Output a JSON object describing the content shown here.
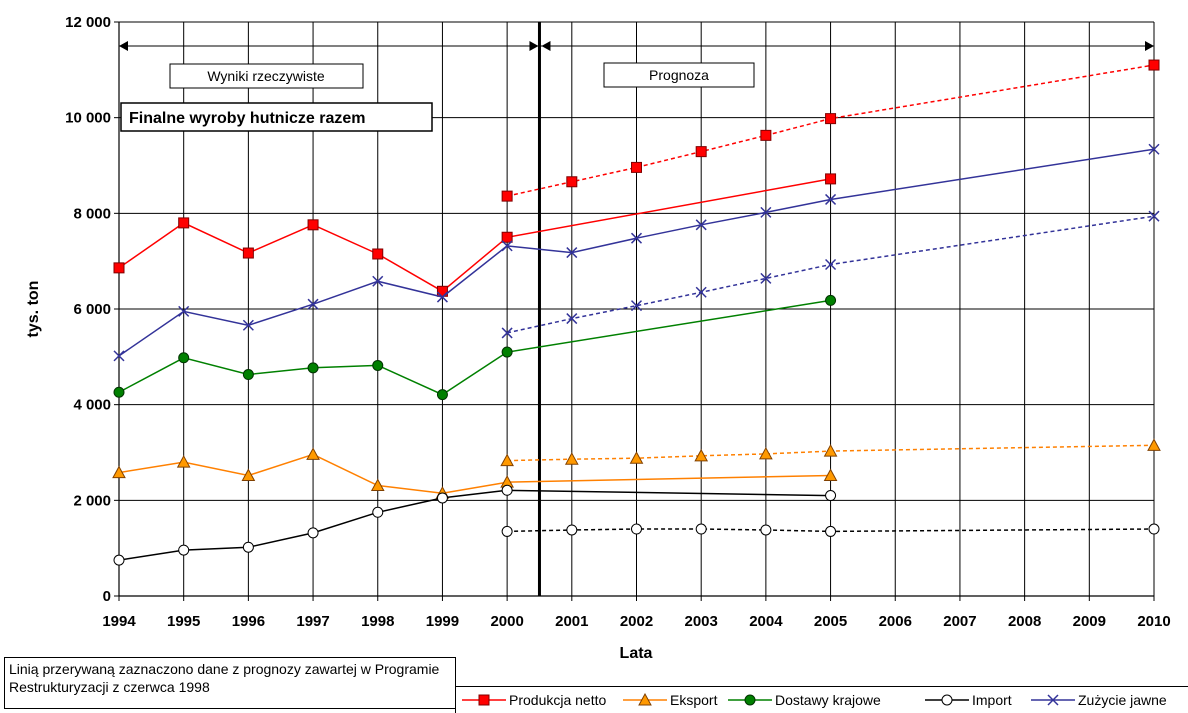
{
  "chart_data": {
    "type": "line",
    "title": "Finalne wyroby hutnicze razem",
    "xlabel": "Lata",
    "ylabel": "tys. ton",
    "x": [
      1994,
      1995,
      1996,
      1997,
      1998,
      1999,
      2000,
      2001,
      2002,
      2003,
      2004,
      2005,
      2006,
      2007,
      2008,
      2009,
      2010
    ],
    "ylim": [
      0,
      12000
    ],
    "yticks": [
      "0",
      "2 000",
      "4 000",
      "6 000",
      "8 000",
      "10 000",
      "12 000"
    ],
    "grid": true,
    "regions": [
      {
        "label": "Wyniki rzeczywiste",
        "from": 1994,
        "to": 2000.5
      },
      {
        "label": "Prognoza",
        "from": 2000.5,
        "to": 2010
      }
    ],
    "divider_x": 2000.5,
    "series": [
      {
        "name": "Produkcja netto",
        "color": "#ff0000",
        "marker": "square",
        "marker_fill": "#ff0000",
        "actual": [
          [
            1994,
            6860
          ],
          [
            1995,
            7800
          ],
          [
            1996,
            7170
          ],
          [
            1997,
            7760
          ],
          [
            1998,
            7150
          ],
          [
            1999,
            6370
          ],
          [
            2000,
            7500
          ]
        ],
        "forecast_solid": [
          [
            2000,
            7500
          ],
          [
            2005,
            8720
          ]
        ],
        "forecast_dashed": [
          [
            2000,
            8360
          ],
          [
            2001,
            8660
          ],
          [
            2002,
            8960
          ],
          [
            2003,
            9290
          ],
          [
            2004,
            9630
          ],
          [
            2005,
            9980
          ],
          [
            2010,
            11100
          ]
        ]
      },
      {
        "name": "Eksport",
        "color": "#ff8000",
        "marker": "triangle",
        "marker_fill": "#ff9900",
        "actual": [
          [
            1994,
            2580
          ],
          [
            1995,
            2800
          ],
          [
            1996,
            2520
          ],
          [
            1997,
            2960
          ],
          [
            1998,
            2310
          ],
          [
            1999,
            2150
          ],
          [
            2000,
            2380
          ]
        ],
        "forecast_solid": [
          [
            2000,
            2380
          ],
          [
            2005,
            2520
          ]
        ],
        "forecast_dashed": [
          [
            2000,
            2830
          ],
          [
            2001,
            2860
          ],
          [
            2002,
            2880
          ],
          [
            2003,
            2930
          ],
          [
            2004,
            2970
          ],
          [
            2005,
            3030
          ],
          [
            2010,
            3150
          ]
        ]
      },
      {
        "name": "Dostawy krajowe",
        "color": "#008000",
        "marker": "circle",
        "marker_fill": "#008000",
        "actual": [
          [
            1994,
            4260
          ],
          [
            1995,
            4980
          ],
          [
            1996,
            4630
          ],
          [
            1997,
            4770
          ],
          [
            1998,
            4820
          ],
          [
            1999,
            4210
          ],
          [
            2000,
            5100
          ]
        ],
        "forecast_solid": [
          [
            2000,
            5100
          ],
          [
            2005,
            6180
          ]
        ],
        "forecast_dashed": []
      },
      {
        "name": "Import",
        "color": "#000000",
        "marker": "circle",
        "marker_fill": "#ffffff",
        "actual": [
          [
            1994,
            750
          ],
          [
            1995,
            960
          ],
          [
            1996,
            1020
          ],
          [
            1997,
            1320
          ],
          [
            1998,
            1750
          ],
          [
            1999,
            2050
          ],
          [
            2000,
            2210
          ]
        ],
        "forecast_solid": [
          [
            2000,
            2210
          ],
          [
            2005,
            2100
          ]
        ],
        "forecast_dashed": [
          [
            2000,
            1350
          ],
          [
            2001,
            1380
          ],
          [
            2002,
            1400
          ],
          [
            2003,
            1400
          ],
          [
            2004,
            1380
          ],
          [
            2005,
            1350
          ],
          [
            2010,
            1400
          ]
        ]
      },
      {
        "name": "Zużycie jawne",
        "color": "#333399",
        "marker": "x",
        "marker_fill": "none",
        "actual": [
          [
            1994,
            5020
          ],
          [
            1995,
            5950
          ],
          [
            1996,
            5660
          ],
          [
            1997,
            6100
          ],
          [
            1998,
            6580
          ],
          [
            1999,
            6250
          ],
          [
            2000,
            7320
          ]
        ],
        "forecast_solid": [
          [
            2000,
            7320
          ],
          [
            2001,
            7180
          ],
          [
            2002,
            7480
          ],
          [
            2003,
            7760
          ],
          [
            2004,
            8020
          ],
          [
            2005,
            8290
          ],
          [
            2010,
            9340
          ]
        ],
        "forecast_dashed": [
          [
            2000,
            5500
          ],
          [
            2001,
            5800
          ],
          [
            2002,
            6070
          ],
          [
            2003,
            6350
          ],
          [
            2004,
            6640
          ],
          [
            2005,
            6930
          ],
          [
            2010,
            7940
          ]
        ]
      }
    ]
  },
  "note": "Linią przerywaną zaznaczono dane z prognozy zawartej w Programie Restrukturyzacji z czerwca 1998"
}
